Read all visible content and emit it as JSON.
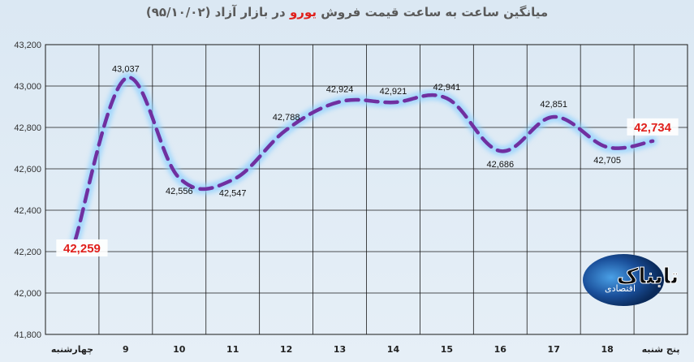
{
  "title": {
    "before": "میانگین ساعت به ساعت قیمت فروش ",
    "highlight": "یورو",
    "after": " در بازار آزاد (۹۵/۱۰/۰۲)"
  },
  "colors": {
    "line": "#7030a0",
    "glow": "#8fd0ff",
    "highlight_label": "#e0201c",
    "grid": "#1a1a1a",
    "background": "#dbe8f3"
  },
  "chart_data": {
    "type": "line",
    "categories": [
      "چهارشنبه",
      "9",
      "10",
      "11",
      "12",
      "13",
      "14",
      "15",
      "16",
      "17",
      "18",
      "پنج شنبه"
    ],
    "values": [
      42259,
      43037,
      42556,
      42547,
      42788,
      42924,
      42921,
      42941,
      42686,
      42851,
      42705,
      42734
    ],
    "data_labels": [
      "42,259",
      "43,037",
      "42,556",
      "42,547",
      "42,788",
      "42,924",
      "42,921",
      "42,941",
      "42,686",
      "42,851",
      "42,705",
      "42,734"
    ],
    "y_ticks": [
      "41,800",
      "42,000",
      "42,200",
      "42,400",
      "42,600",
      "42,800",
      "43,000",
      "43,200"
    ],
    "ylim": [
      41800,
      43200
    ],
    "line_style": "dashed",
    "grid": true,
    "legend": "none"
  },
  "logo": {
    "text_main": "تابناک",
    "text_sub": "اقتصادی"
  }
}
